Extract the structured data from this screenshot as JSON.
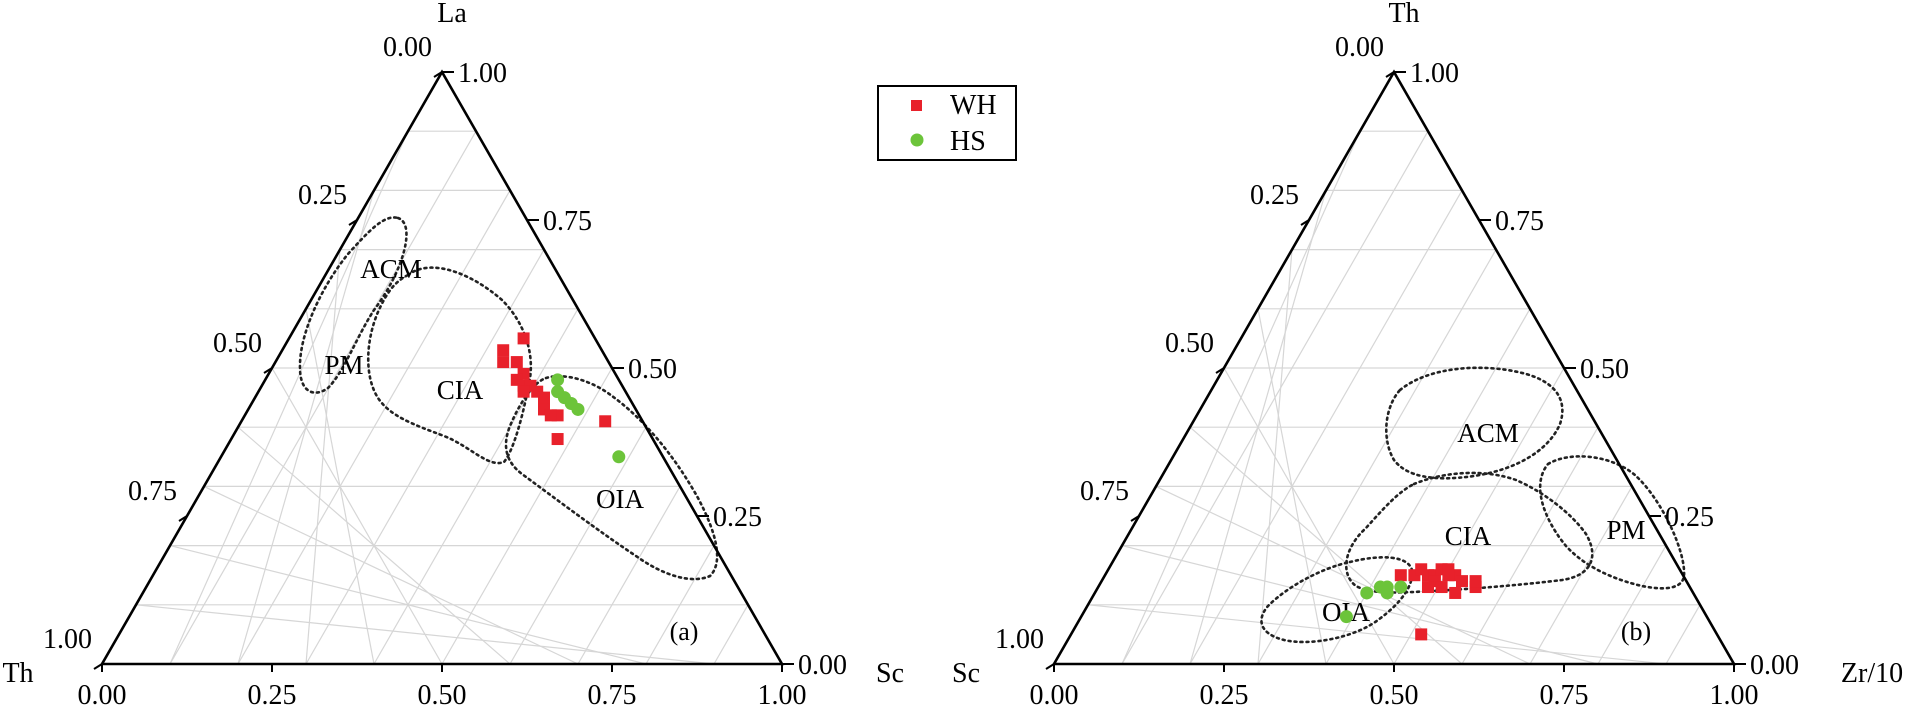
{
  "legend": {
    "entries": [
      {
        "label": "WH",
        "marker": "square",
        "color": "#e8212b"
      },
      {
        "label": "HS",
        "marker": "circle",
        "color": "#6cc43a"
      }
    ]
  },
  "chart_data": [
    {
      "type": "ternary-scatter",
      "panel_label": "(a)",
      "vertices": {
        "top": "La",
        "left": "Th",
        "right": "Sc"
      },
      "ticks": {
        "left_edge": [
          "0.00",
          "0.25",
          "0.50",
          "0.75",
          "1.00"
        ],
        "right_edge": [
          "1.00",
          "0.75",
          "0.50",
          "0.25",
          "0.00"
        ],
        "bottom_edge": [
          "0.00",
          "0.25",
          "0.50",
          "0.75",
          "1.00"
        ]
      },
      "grid": true,
      "fields": [
        {
          "label": "ACM"
        },
        {
          "label": "PM"
        },
        {
          "label": "CIA"
        },
        {
          "label": "OIA"
        }
      ],
      "series": [
        {
          "name": "WH",
          "points": [
            {
              "x": 0.62,
              "y": 0.55
            },
            {
              "x": 0.59,
              "y": 0.53
            },
            {
              "x": 0.59,
              "y": 0.51
            },
            {
              "x": 0.61,
              "y": 0.51
            },
            {
              "x": 0.62,
              "y": 0.49
            },
            {
              "x": 0.61,
              "y": 0.48
            },
            {
              "x": 0.62,
              "y": 0.47
            },
            {
              "x": 0.63,
              "y": 0.47
            },
            {
              "x": 0.62,
              "y": 0.46
            },
            {
              "x": 0.64,
              "y": 0.46
            },
            {
              "x": 0.65,
              "y": 0.45
            },
            {
              "x": 0.65,
              "y": 0.43
            },
            {
              "x": 0.67,
              "y": 0.42
            },
            {
              "x": 0.66,
              "y": 0.42
            },
            {
              "x": 0.74,
              "y": 0.41
            },
            {
              "x": 0.67,
              "y": 0.38
            }
          ]
        },
        {
          "name": "HS",
          "points": [
            {
              "x": 0.67,
              "y": 0.48
            },
            {
              "x": 0.67,
              "y": 0.46
            },
            {
              "x": 0.68,
              "y": 0.45
            },
            {
              "x": 0.69,
              "y": 0.44
            },
            {
              "x": 0.7,
              "y": 0.43
            },
            {
              "x": 0.76,
              "y": 0.35
            }
          ]
        }
      ]
    },
    {
      "type": "ternary-scatter",
      "panel_label": "(b)",
      "vertices": {
        "top": "Th",
        "left": "Sc",
        "right": "Zr/10"
      },
      "ticks": {
        "left_edge": [
          "0.00",
          "0.25",
          "0.50",
          "0.75",
          "1.00"
        ],
        "right_edge": [
          "1.00",
          "0.75",
          "0.50",
          "0.25",
          "0.00"
        ],
        "bottom_edge": [
          "0.00",
          "0.25",
          "0.50",
          "0.75",
          "1.00"
        ]
      },
      "grid": true,
      "fields": [
        {
          "label": "ACM"
        },
        {
          "label": "CIA"
        },
        {
          "label": "PM"
        },
        {
          "label": "OIA"
        }
      ],
      "series": [
        {
          "name": "WH",
          "points": [
            {
              "x": 0.51,
              "y": 0.15
            },
            {
              "x": 0.53,
              "y": 0.15
            },
            {
              "x": 0.54,
              "y": 0.16
            },
            {
              "x": 0.55,
              "y": 0.15
            },
            {
              "x": 0.56,
              "y": 0.15
            },
            {
              "x": 0.57,
              "y": 0.16
            },
            {
              "x": 0.58,
              "y": 0.16
            },
            {
              "x": 0.59,
              "y": 0.15
            },
            {
              "x": 0.6,
              "y": 0.14
            },
            {
              "x": 0.58,
              "y": 0.15
            },
            {
              "x": 0.56,
              "y": 0.14
            },
            {
              "x": 0.55,
              "y": 0.13
            },
            {
              "x": 0.57,
              "y": 0.13
            },
            {
              "x": 0.59,
              "y": 0.12
            },
            {
              "x": 0.62,
              "y": 0.13
            },
            {
              "x": 0.62,
              "y": 0.14
            },
            {
              "x": 0.54,
              "y": 0.05
            }
          ]
        },
        {
          "name": "HS",
          "points": [
            {
              "x": 0.43,
              "y": 0.08
            },
            {
              "x": 0.46,
              "y": 0.12
            },
            {
              "x": 0.48,
              "y": 0.13
            },
            {
              "x": 0.49,
              "y": 0.13
            },
            {
              "x": 0.49,
              "y": 0.12
            },
            {
              "x": 0.51,
              "y": 0.13
            }
          ]
        }
      ]
    }
  ]
}
